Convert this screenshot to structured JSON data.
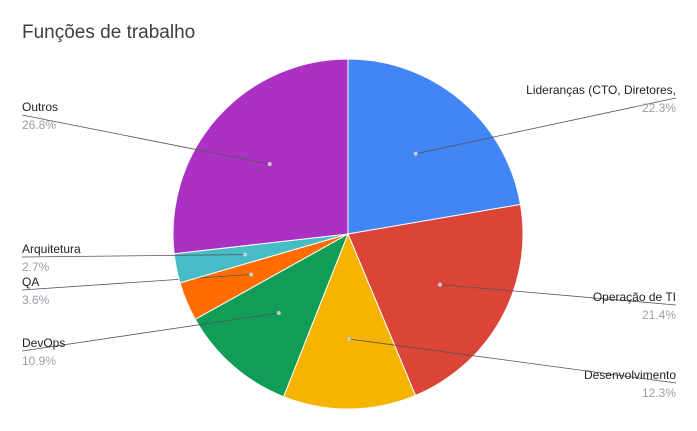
{
  "chart_data": {
    "type": "pie",
    "title": "Funções de trabalho",
    "slices": [
      {
        "label": "Lideranças (CTO, Diretores,",
        "pct_text": "22.3%",
        "value": 22.3,
        "color": "#4285f4",
        "side": "right"
      },
      {
        "label": "Operação de TI",
        "pct_text": "21.4%",
        "value": 21.4,
        "color": "#db4437",
        "side": "right"
      },
      {
        "label": "Desenvolvimento",
        "pct_text": "12.3%",
        "value": 12.3,
        "color": "#f4b400",
        "side": "right"
      },
      {
        "label": "DevOps",
        "pct_text": "10.9%",
        "value": 10.9,
        "color": "#0f9d58",
        "side": "left"
      },
      {
        "label": "QA",
        "pct_text": "3.6%",
        "value": 3.6,
        "color": "#ff6d01",
        "side": "left"
      },
      {
        "label": "Arquitetura",
        "pct_text": "2.7%",
        "value": 2.7,
        "color": "#46bdc6",
        "side": "left"
      },
      {
        "label": "Outros",
        "pct_text": "26.8%",
        "value": 26.8,
        "color": "#ab30c4",
        "side": "left"
      }
    ],
    "legend": "labels"
  }
}
